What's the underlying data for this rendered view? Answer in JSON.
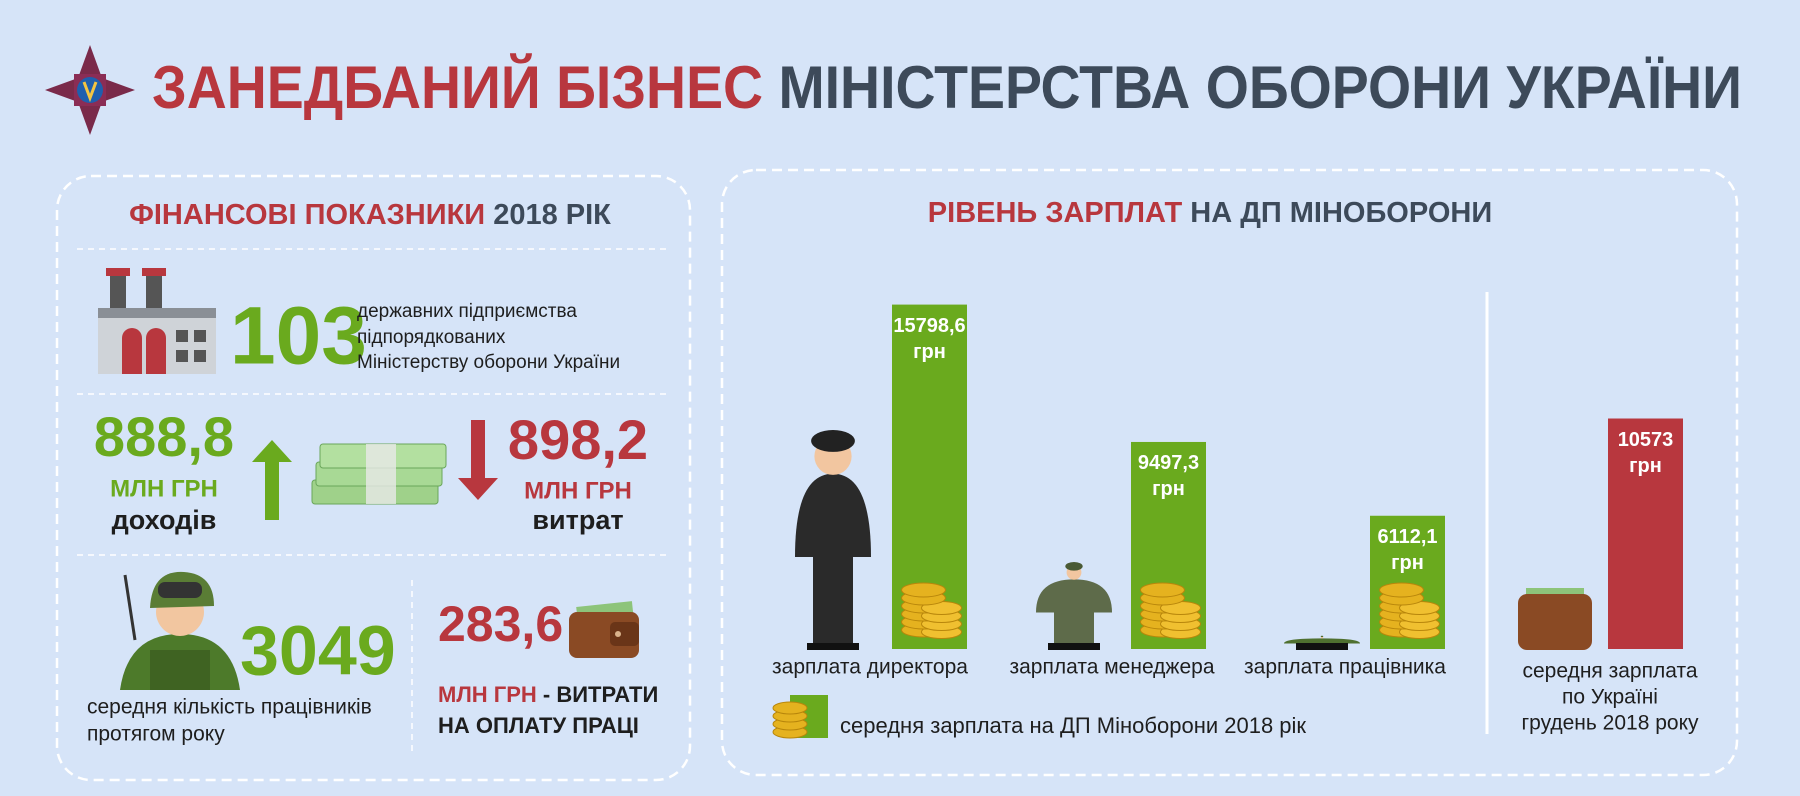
{
  "header": {
    "title_red": "ЗАНЕДБАНИЙ БІЗНЕС",
    "title_dark": "МІНІСТЕРСТВА ОБОРОНИ УКРАЇНИ"
  },
  "finance": {
    "title_red": "ФІНАНСОВІ ПОКАЗНИКИ",
    "title_dark": "2018 РІК",
    "enterprises": {
      "number": "103",
      "text": [
        "державних підприємства",
        "підпорядкованих",
        "Міністерству оборони України"
      ]
    },
    "income": {
      "number": "888,8",
      "unit": "МЛН ГРН",
      "label": "доходів"
    },
    "expenses": {
      "number": "898,2",
      "unit": "МЛН ГРН",
      "label": "витрат"
    },
    "workers": {
      "number": "3049",
      "text": [
        "середня кількість працівників",
        "протягом року"
      ]
    },
    "labor_costs": {
      "number": "283,6",
      "unit": "МЛН ГРН",
      "text": [
        "- ВИТРАТИ",
        "НА ОПЛАТУ ПРАЦІ"
      ]
    }
  },
  "salary": {
    "title_red": "РІВЕНЬ ЗАРПЛАТ",
    "title_dark": "НА ДП МІНОБОРОНИ",
    "bars": [
      {
        "value": 15798.6,
        "value_label": "15798,6",
        "unit": "грн",
        "caption": "зарплата директора"
      },
      {
        "value": 9497.3,
        "value_label": "9497,3",
        "unit": "грн",
        "caption": "зарплата менеджера"
      },
      {
        "value": 6112.1,
        "value_label": "6112,1",
        "unit": "грн",
        "caption": "зарплата працівника"
      }
    ],
    "bar_color": "#6aaa1e",
    "legend": "середня зарплата на ДП Міноборони 2018 рік",
    "national": {
      "value": 10573,
      "value_label": "10573",
      "unit": "грн",
      "color": "#b8373e",
      "caption": [
        "середня зарплата",
        "по Україні",
        "грудень 2018 року"
      ]
    }
  }
}
